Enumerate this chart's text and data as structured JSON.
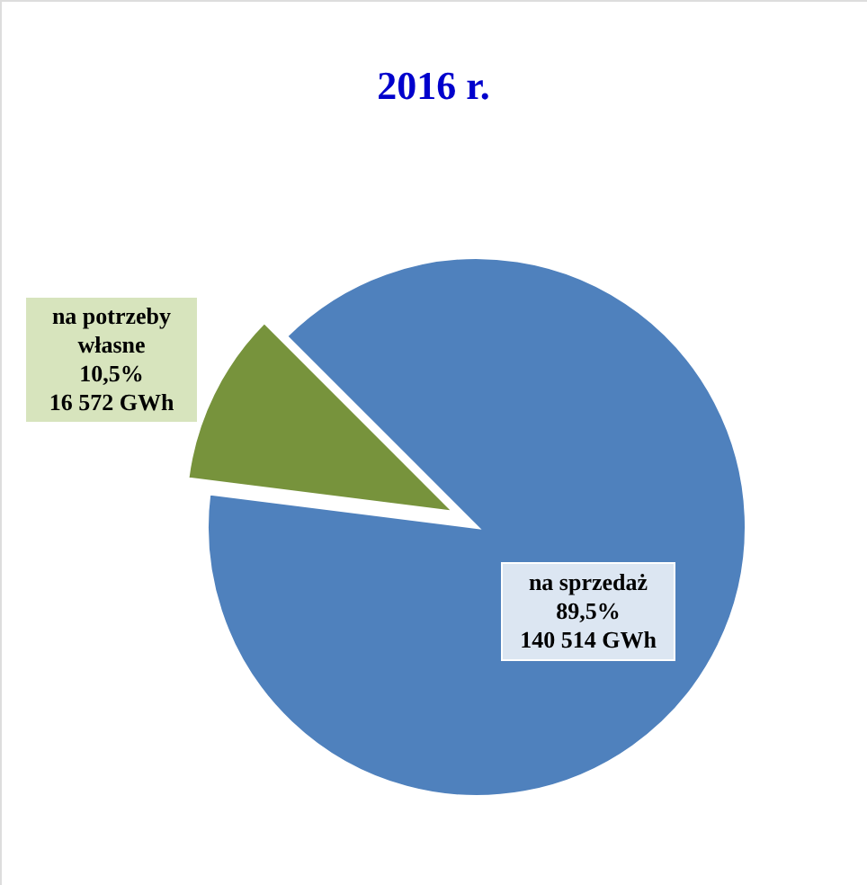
{
  "chart_data": {
    "type": "pie",
    "title": "2016 r.",
    "categories": [
      "na sprzedaż",
      "na potrzeby własne"
    ],
    "values": [
      89.5,
      10.5
    ],
    "colors": [
      "#4f81bd",
      "#77933c"
    ],
    "value_labels": [
      "89,5%",
      "10,5%"
    ],
    "annotations": [
      "140 514 GWh",
      "16 572 GWh"
    ],
    "legend": false
  }
}
